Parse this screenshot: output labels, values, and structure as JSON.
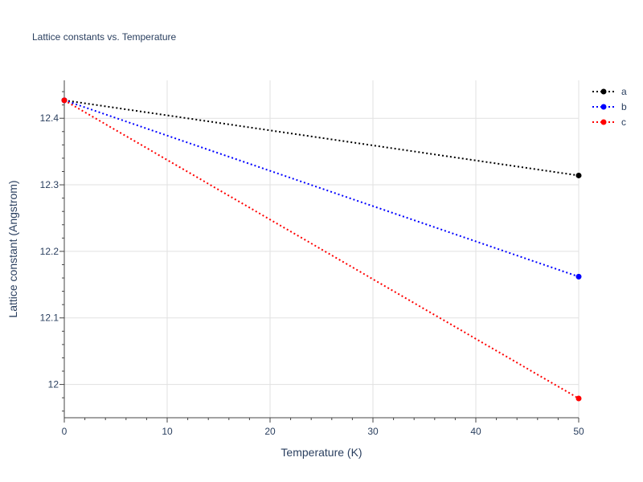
{
  "chart_data": {
    "type": "line",
    "title": "Lattice constants vs. Temperature",
    "xlabel": "Temperature (K)",
    "ylabel": "Lattice constant (Angstrom)",
    "xlim": [
      0,
      50
    ],
    "ylim": [
      11.95,
      12.457
    ],
    "x_ticks": [
      0,
      10,
      20,
      30,
      40,
      50
    ],
    "y_ticks": [
      12,
      12.1,
      12.2,
      12.3,
      12.4
    ],
    "grid": true,
    "legend_position": "top-right",
    "line_style": "dotted",
    "x": [
      0,
      50
    ],
    "series": [
      {
        "name": "a",
        "color": "#000000",
        "values": [
          12.427,
          12.314
        ]
      },
      {
        "name": "b",
        "color": "#0000ff",
        "values": [
          12.427,
          12.162
        ]
      },
      {
        "name": "c",
        "color": "#ff0000",
        "values": [
          12.427,
          11.979
        ]
      }
    ]
  }
}
